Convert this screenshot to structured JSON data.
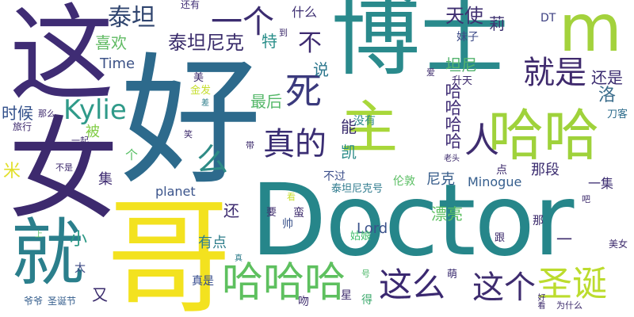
{
  "words": [
    {
      "text": "博士",
      "color": "#2a8a8c"
    },
    {
      "text": "好",
      "color": "#2d6a8c"
    },
    {
      "text": "女",
      "color": "#3d2a6e"
    },
    {
      "text": "这",
      "color": "#3f2c74"
    },
    {
      "text": "Doctor",
      "color": "#26868a"
    },
    {
      "text": "哥",
      "color": "#f3e21f"
    },
    {
      "text": "就",
      "color": "#2b7f8c"
    },
    {
      "text": "哈哈",
      "color": "#9fd23b"
    },
    {
      "text": "主",
      "color": "#a8d73a"
    },
    {
      "text": "m",
      "color": "#a3d23c"
    },
    {
      "text": "哈哈哈",
      "color": "#5ec05f"
    },
    {
      "text": "圣诞",
      "color": "#bcdc2e"
    },
    {
      "text": "这么",
      "color": "#3a2870"
    },
    {
      "text": "这个",
      "color": "#3e2c6f"
    },
    {
      "text": "人",
      "color": "#3e2c6f"
    },
    {
      "text": "死",
      "color": "#3b3a7d"
    },
    {
      "text": "真的",
      "color": "#3a2d73"
    },
    {
      "text": "就是",
      "color": "#3f2a6d"
    },
    {
      "text": "一个",
      "color": "#3b2c70"
    },
    {
      "text": "Kylie",
      "color": "#2f9a89"
    },
    {
      "text": "么",
      "color": "#2e8b86"
    },
    {
      "text": "泰坦",
      "color": "#30456f"
    },
    {
      "text": "泰坦尼克",
      "color": "#3b2d6c"
    },
    {
      "text": "不",
      "color": "#3d2a6f"
    },
    {
      "text": "天使",
      "color": "#3f2f70"
    },
    {
      "text": "莉",
      "color": "#3e3270"
    },
    {
      "text": "坦尼",
      "color": "#54b36e"
    },
    {
      "text": "还是",
      "color": "#3b2c70"
    },
    {
      "text": "洛",
      "color": "#3b6d8c"
    },
    {
      "text": "哈哈哈哈",
      "color": "#3f2c74"
    },
    {
      "text": "最后",
      "color": "#56b86a"
    },
    {
      "text": "时候",
      "color": "#314f8a"
    },
    {
      "text": "说",
      "color": "#2c778d"
    },
    {
      "text": "特",
      "color": "#2a8f8a"
    },
    {
      "text": "喜欢",
      "color": "#5fba62"
    },
    {
      "text": "Time",
      "color": "#3d5387"
    },
    {
      "text": "被",
      "color": "#80cc44"
    },
    {
      "text": "能",
      "color": "#3b2d6f"
    },
    {
      "text": "凯",
      "color": "#2a8b88"
    },
    {
      "text": "尼克",
      "color": "#355b89"
    },
    {
      "text": "集",
      "color": "#3f2c72"
    },
    {
      "text": "米",
      "color": "#e1df2a"
    },
    {
      "text": "个",
      "color": "#57bf64"
    },
    {
      "text": "小",
      "color": "#2d9a86"
    },
    {
      "text": "还",
      "color": "#3d2b6f"
    },
    {
      "text": "有点",
      "color": "#2e7d8b"
    },
    {
      "text": "太",
      "color": "#3d4a85"
    },
    {
      "text": "又",
      "color": "#3a2b6c"
    },
    {
      "text": "planet",
      "color": "#3b548b"
    },
    {
      "text": "Lord",
      "color": "#3b528b"
    },
    {
      "text": "Minogue",
      "color": "#355e8d"
    },
    {
      "text": "那段",
      "color": "#3b2c70"
    },
    {
      "text": "一集",
      "color": "#3b2c70"
    },
    {
      "text": "漂亮",
      "color": "#5cc061"
    },
    {
      "text": "DT",
      "color": "#3b3f80"
    },
    {
      "text": "妹子",
      "color": "#3e4c88"
    },
    {
      "text": "升天",
      "color": "#3d2b6c"
    },
    {
      "text": "刀客",
      "color": "#2f6d8d"
    },
    {
      "text": "什么",
      "color": "#3b2c70"
    },
    {
      "text": "还有",
      "color": "#3f2c74"
    },
    {
      "text": "金发",
      "color": "#c6de2c"
    },
    {
      "text": "美",
      "color": "#3d2b6c"
    },
    {
      "text": "旅行",
      "color": "#3e2a6e"
    },
    {
      "text": "那么",
      "color": "#3e2a6e"
    },
    {
      "text": "一起",
      "color": "#3e2a6e"
    },
    {
      "text": "不是",
      "color": "#3e2a6e"
    },
    {
      "text": "没有",
      "color": "#2d8b8a"
    },
    {
      "text": "不过",
      "color": "#3b4e8a"
    },
    {
      "text": "泰坦尼克号",
      "color": "#2f7b8e"
    },
    {
      "text": "伦敦",
      "color": "#5cbf65"
    },
    {
      "text": "点",
      "color": "#3d2b6c"
    },
    {
      "text": "跟",
      "color": "#3d2b6c"
    },
    {
      "text": "那",
      "color": "#3d2b6c"
    },
    {
      "text": "吧",
      "color": "#3d2b6c"
    },
    {
      "text": "美女",
      "color": "#3d2b6c"
    },
    {
      "text": "为什么",
      "color": "#3d2b6c"
    },
    {
      "text": "好看",
      "color": "#3d2b6c"
    },
    {
      "text": "萌",
      "color": "#3b2c70"
    },
    {
      "text": "帅",
      "color": "#3b538b"
    },
    {
      "text": "姑娘",
      "color": "#41bf6c"
    },
    {
      "text": "要",
      "color": "#3d2b6c"
    },
    {
      "text": "蛮",
      "color": "#3d2b6c"
    },
    {
      "text": "看",
      "color": "#c8df2c"
    },
    {
      "text": "星",
      "color": "#3d2b6c"
    },
    {
      "text": "得",
      "color": "#3ba96c"
    },
    {
      "text": "吻",
      "color": "#3d2b6c"
    },
    {
      "text": "号",
      "color": "#4eb86a"
    },
    {
      "text": "真是",
      "color": "#30478a"
    },
    {
      "text": "爷爷",
      "color": "#355e8d"
    },
    {
      "text": "圣诞节",
      "color": "#355e8d"
    },
    {
      "text": "上",
      "color": "#5cbf65"
    },
    {
      "text": "笑",
      "color": "#3d2b6c"
    },
    {
      "text": "带",
      "color": "#3d2b6c"
    },
    {
      "text": "到",
      "color": "#3d2b6c"
    },
    {
      "text": "爱",
      "color": "#3d2b6c"
    },
    {
      "text": "老头",
      "color": "#3d2b6c"
    },
    {
      "text": "一",
      "color": "#3d2b6c"
    },
    {
      "text": "差",
      "color": "#2e7d8b"
    },
    {
      "text": "真",
      "color": "#2e7d8b"
    }
  ]
}
